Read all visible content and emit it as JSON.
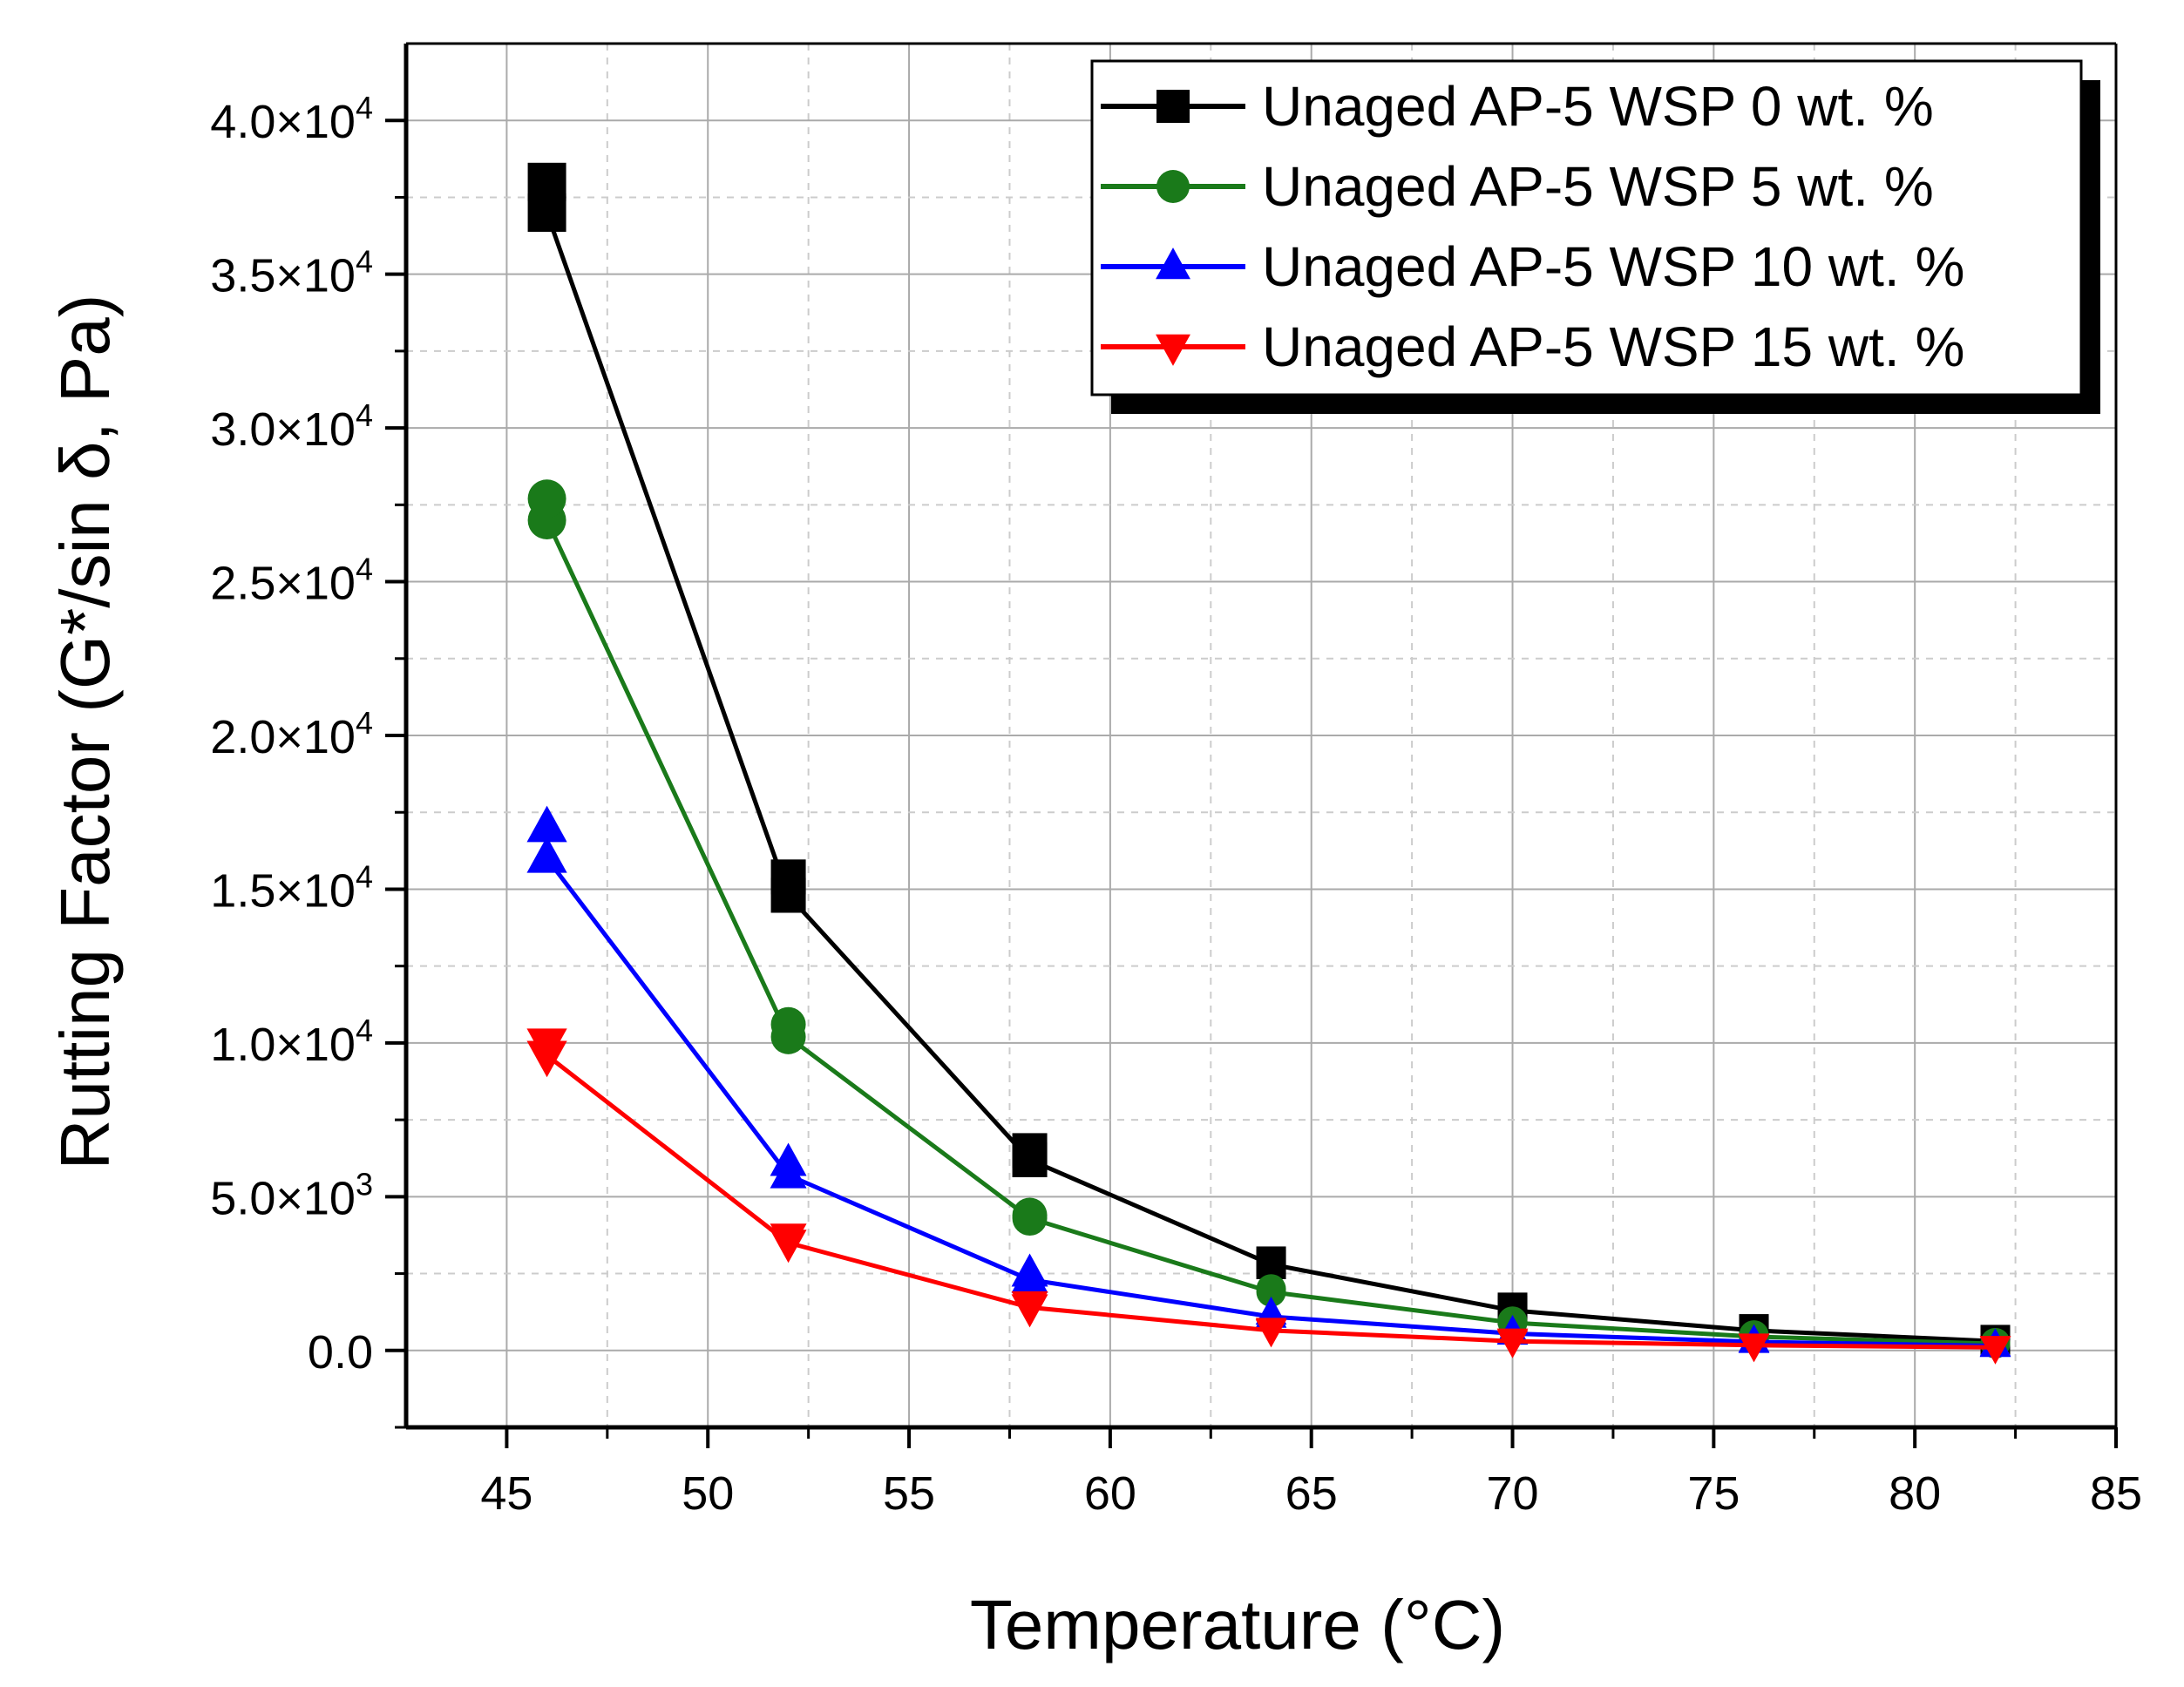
{
  "chart_data": {
    "type": "line",
    "title": "",
    "xlabel": "Temperature (°C)",
    "ylabel": "Rutting Factor (G*/sin δ, Pa)",
    "xlim": [
      42.5,
      85
    ],
    "ylim": [
      -2500,
      42500
    ],
    "grid": true,
    "legend_position": "top-right",
    "x": [
      46,
      52,
      58,
      64,
      70,
      76,
      82
    ],
    "x_ticks": [
      {
        "value": 45,
        "label": "45"
      },
      {
        "value": 50,
        "label": "50"
      },
      {
        "value": 55,
        "label": "55"
      },
      {
        "value": 60,
        "label": "60"
      },
      {
        "value": 65,
        "label": "65"
      },
      {
        "value": 70,
        "label": "70"
      },
      {
        "value": 75,
        "label": "75"
      },
      {
        "value": 80,
        "label": "80"
      },
      {
        "value": 85,
        "label": "85"
      }
    ],
    "y_ticks": [
      {
        "value": 0,
        "mantissa": "0.0",
        "exponent": ""
      },
      {
        "value": 5000,
        "mantissa": "5.0×10",
        "exponent": "3"
      },
      {
        "value": 10000,
        "mantissa": "1.0×10",
        "exponent": "4"
      },
      {
        "value": 15000,
        "mantissa": "1.5×10",
        "exponent": "4"
      },
      {
        "value": 20000,
        "mantissa": "2.0×10",
        "exponent": "4"
      },
      {
        "value": 25000,
        "mantissa": "2.5×10",
        "exponent": "4"
      },
      {
        "value": 30000,
        "mantissa": "3.0×10",
        "exponent": "4"
      },
      {
        "value": 35000,
        "mantissa": "3.5×10",
        "exponent": "4"
      },
      {
        "value": 40000,
        "mantissa": "4.0×10",
        "exponent": "4"
      }
    ],
    "series": [
      {
        "name": "Unaged AP-5 WSP 0 wt. %",
        "color": "#000000",
        "marker": "square",
        "values": [
          37000,
          14800,
          6200,
          2800,
          1300,
          650,
          300
        ],
        "duplicate_values": [
          38000,
          15400,
          6500,
          2900,
          1400,
          700,
          350
        ]
      },
      {
        "name": "Unaged AP-5 WSP 5 wt. %",
        "color": "#1a7a1a",
        "marker": "circle",
        "values": [
          27000,
          10200,
          4300,
          1900,
          900,
          450,
          220
        ],
        "duplicate_values": [
          27700,
          10600,
          4400,
          2000,
          950,
          500,
          250
        ]
      },
      {
        "name": "Unaged AP-5 WSP 10 wt. %",
        "color": "#0000ff",
        "marker": "triangle-up",
        "values": [
          16000,
          5700,
          2300,
          1100,
          550,
          280,
          150
        ],
        "duplicate_values": [
          17000,
          6100,
          2500,
          1200,
          600,
          300,
          170
        ]
      },
      {
        "name": "Unaged AP-5 WSP 15 wt. %",
        "color": "#ff0000",
        "marker": "triangle-down",
        "values": [
          9600,
          3500,
          1400,
          650,
          300,
          170,
          100
        ],
        "duplicate_values": [
          10000,
          3700,
          1500,
          700,
          350,
          190,
          110
        ]
      }
    ]
  }
}
